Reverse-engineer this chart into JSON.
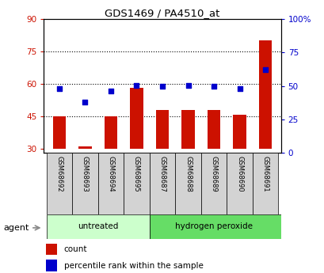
{
  "title": "GDS1469 / PA4510_at",
  "samples": [
    "GSM68692",
    "GSM68693",
    "GSM68694",
    "GSM68695",
    "GSM68687",
    "GSM68688",
    "GSM68689",
    "GSM68690",
    "GSM68691"
  ],
  "counts": [
    45,
    31,
    45,
    58,
    48,
    48,
    48,
    45.5,
    80
  ],
  "percentile_vals": [
    48,
    38,
    46,
    50.5,
    50,
    50.5,
    50,
    48,
    62
  ],
  "ylim_left": [
    28,
    90
  ],
  "ylim_right": [
    0,
    100
  ],
  "yticks_left": [
    30,
    45,
    60,
    75,
    90
  ],
  "yticks_right": [
    0,
    25,
    50,
    75,
    100
  ],
  "ytick_labels_left": [
    "30",
    "45",
    "60",
    "75",
    "90"
  ],
  "ytick_labels_right": [
    "0",
    "25",
    "50",
    "75",
    "100%"
  ],
  "bar_color": "#cc1100",
  "dot_color": "#0000cc",
  "untreated_color": "#ccffcc",
  "peroxide_color": "#66dd66",
  "agent_label": "agent",
  "legend_count": "count",
  "legend_percentile": "percentile rank within the sample",
  "background_color": "#ffffff",
  "bar_width": 0.5,
  "xlim": [
    -0.6,
    8.6
  ],
  "hline_y": [
    45,
    60,
    75
  ],
  "untreated_end": 3.5,
  "peroxide_start": 3.5
}
